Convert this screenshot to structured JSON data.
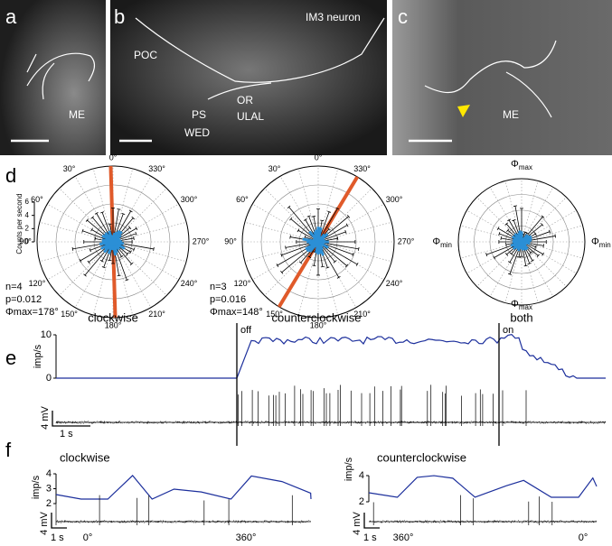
{
  "panels": {
    "a": {
      "label": "a",
      "regions": [
        "ME"
      ]
    },
    "b": {
      "label": "b",
      "regions": [
        "POC",
        "OR",
        "PS",
        "WED",
        "ULAL"
      ],
      "neuron": "IM3 neuron"
    },
    "c": {
      "label": "c",
      "regions": [
        "ME"
      ]
    },
    "d": {
      "label": "d",
      "y_axis_label": "Counts per second",
      "y_ticks": [
        0,
        2,
        4,
        6
      ],
      "angle_labels": [
        "0°",
        "30°",
        "60°",
        "90°",
        "120°",
        "150°",
        "180°",
        "210°",
        "240°",
        "270°",
        "300°",
        "330°"
      ],
      "plots": [
        {
          "stats": [
            "n=4",
            "p=0.012",
            "Φmax=178°"
          ],
          "title": "clockwise"
        },
        {
          "stats": [
            "n=3",
            "p=0.016",
            "Φmax=148°"
          ],
          "title": "counterclockwise"
        },
        {
          "title": "both",
          "markers": {
            "symbol": "Φ",
            "top": "max",
            "left": "min",
            "right": "min",
            "bottom": "max"
          }
        }
      ]
    },
    "e": {
      "label": "e",
      "rate_label": "imp/s",
      "rate_ticks": [
        10,
        0
      ],
      "voltage_scale": "4 mV",
      "time_scale": "1 s",
      "events": [
        "off",
        "on"
      ]
    },
    "f": {
      "label": "f",
      "left": {
        "title": "clockwise",
        "rate_label": "imp/s",
        "rate_ticks": [
          4,
          3,
          2
        ],
        "voltage_scale": "4 mV",
        "time_scale": "1 s",
        "angles": [
          "0°",
          "360°"
        ]
      },
      "right": {
        "title": "counterclockwise",
        "rate_label": "imp/s",
        "rate_ticks": [
          4,
          2
        ],
        "voltage_scale": "4 mV",
        "time_scale": "1 s",
        "angles": [
          "360°",
          "0°"
        ]
      }
    }
  }
}
